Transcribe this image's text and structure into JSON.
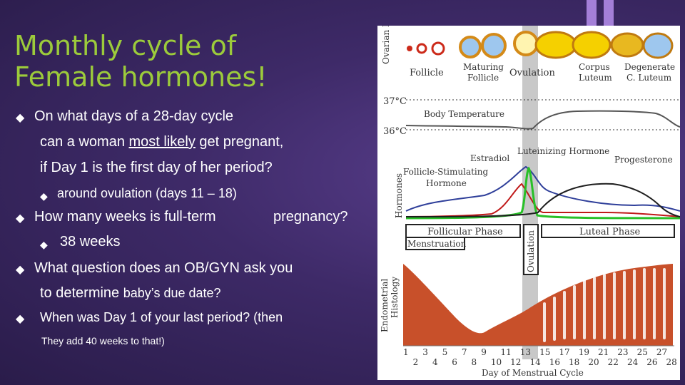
{
  "slide": {
    "title_line1": "Monthly cycle of",
    "title_line2": "Female hormones!",
    "bullets": {
      "q1_line1": "On what days of a 28-day cycle",
      "q1_line2a": "can a woman ",
      "q1_line2b": "most likely",
      "q1_line2c": " get pregnant,",
      "q1_line3": "if Day 1 is the first day of her period?",
      "a1": "around ovulation (days 11 – 18)",
      "q2a": "How many weeks is full-term",
      "q2b": "pregnancy?",
      "a2": "38 weeks",
      "q3_line1": "What question does an OB/GYN ask you",
      "q3_line2a": "to determine ",
      "q3_line2b": "baby’s due date?",
      "a3_line1": "When was Day 1 of your last period? (then",
      "a3_line2": "They add 40 weeks to that!)"
    }
  },
  "figure": {
    "ovarian_label": "Ovarian Histology",
    "stages": [
      "Follicle",
      "Maturing Follicle",
      "Ovulation",
      "Corpus Luteum",
      "Degenerate C. Luteum"
    ],
    "temp_high": "37°C",
    "temp_low": "36°C",
    "body_temperature": "Body Temperature",
    "hormones_label": "Hormones",
    "estradiol": "Estradiol",
    "lh": "Luteinizing Hormone",
    "progesterone": "Progesterone",
    "fsh": "Follicle-Stimulating Hormone",
    "follicular_phase": "Follicular Phase",
    "luteal_phase": "Luteal Phase",
    "menstruation": "Menstruation",
    "ovulation": "Ovulation",
    "endometrial_label": "Endometrial Histology",
    "days_odd": [
      "1",
      "3",
      "5",
      "7",
      "9",
      "11",
      "13",
      "15",
      "17",
      "19",
      "21",
      "23",
      "25",
      "27"
    ],
    "days_even": [
      "2",
      "4",
      "6",
      "8",
      "10",
      "12",
      "14",
      "16",
      "18",
      "20",
      "22",
      "24",
      "26",
      "28"
    ],
    "x_axis": "Day of Menstrual Cycle",
    "colors": {
      "fsh": "#2f3f9a",
      "estradiol": "#c01818",
      "lh": "#28c028",
      "progesterone": "#1e1e1e",
      "endometrium": "#c8502a"
    }
  }
}
